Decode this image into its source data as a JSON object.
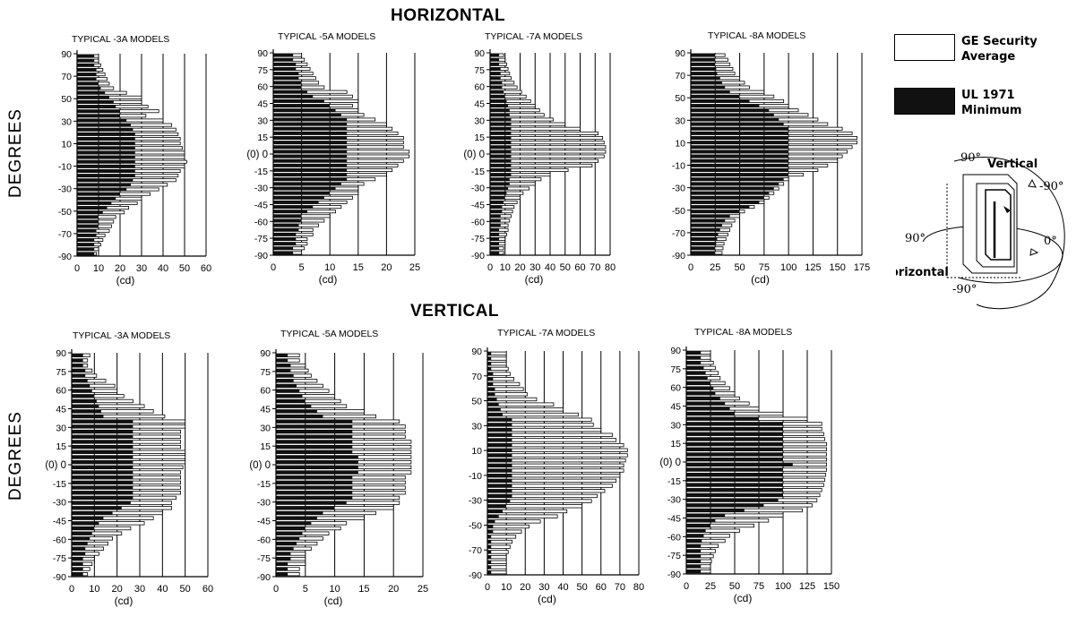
{
  "headings": {
    "horizontal": "HORIZONTAL",
    "vertical": "VERTICAL"
  },
  "axis": {
    "degrees_label": "DEGREES",
    "unit_label": "(cd)",
    "zero_label": "(0)"
  },
  "legend": {
    "average_line1": "GE Security",
    "average_line2": "Average",
    "minimum_line1": "UL 1971",
    "minimum_line2": "Minimum"
  },
  "diagram": {
    "vertical_label": "Vertical",
    "horizontal_label": "Horizontal",
    "deg_90_vertical": "90°",
    "deg_neg90_vertical": "-90°",
    "deg_90_horizontal": "90°",
    "deg_0": "0°",
    "deg_neg90_horizontal": "-90°"
  },
  "colors": {
    "average": "#ffffff",
    "minimum": "#111111",
    "outline": "#000000"
  },
  "chart_data": [
    {
      "type": "bar",
      "orientation": "horizontal",
      "group": "HORIZONTAL",
      "title": "TYPICAL -3A MODELS",
      "xlabel": "(cd)",
      "ylabel": "DEGREES",
      "xlim": [
        0,
        60
      ],
      "xticks": [
        0,
        10,
        20,
        30,
        40,
        50,
        60
      ],
      "ylim": [
        -90,
        90
      ],
      "yticks": [
        90,
        70,
        50,
        30,
        10,
        -10,
        -30,
        -50,
        -70,
        -90
      ],
      "series": [
        {
          "name": "GE Security Average",
          "values": [
            10,
            10,
            11,
            12,
            13,
            14,
            15,
            17,
            23,
            30,
            30,
            33,
            38,
            32,
            40,
            44,
            46,
            47,
            48,
            48,
            49,
            50,
            50,
            51,
            50,
            48,
            47,
            46,
            42,
            38,
            34,
            30,
            28,
            24,
            22,
            18,
            17,
            16,
            15,
            13,
            12,
            11,
            10,
            9
          ]
        },
        {
          "name": "UL 1971 Minimum",
          "values": [
            8,
            8,
            8,
            9,
            9,
            9,
            10,
            11,
            13,
            15,
            17,
            18,
            20,
            20,
            23,
            25,
            26,
            27,
            27,
            27,
            27,
            27,
            27,
            27,
            27,
            27,
            27,
            26,
            25,
            23,
            20,
            18,
            16,
            14,
            12,
            10,
            10,
            10,
            9,
            9,
            8,
            8,
            8,
            8
          ]
        }
      ]
    },
    {
      "type": "bar",
      "orientation": "horizontal",
      "group": "HORIZONTAL",
      "title": "TYPICAL -5A MODELS",
      "xlabel": "(cd)",
      "ylabel": "DEGREES",
      "xlim": [
        0,
        25
      ],
      "xticks": [
        0,
        5,
        10,
        15,
        20,
        25
      ],
      "ylim": [
        -90,
        90
      ],
      "yticks": [
        90,
        75,
        60,
        45,
        30,
        15,
        0,
        -15,
        -30,
        -45,
        -60,
        -75,
        -90
      ],
      "series": [
        {
          "name": "GE Security Average",
          "values": [
            5,
            5.5,
            6,
            6.5,
            7,
            7.5,
            8,
            9,
            13,
            14,
            15,
            14,
            15,
            16,
            18,
            20,
            21,
            22,
            23,
            23,
            23,
            24,
            24,
            23,
            22,
            21,
            20,
            18,
            16,
            15,
            15,
            14,
            13,
            12,
            11,
            10,
            9,
            8,
            7,
            7,
            6,
            6,
            5.5,
            5
          ]
        },
        {
          "name": "UL 1971 Minimum",
          "values": [
            3.5,
            3.5,
            4,
            4,
            4.5,
            4.5,
            5,
            5,
            6,
            7,
            9,
            10,
            11,
            12,
            13,
            13,
            13,
            13,
            13,
            13,
            13,
            13,
            13,
            13,
            13,
            13,
            13,
            13,
            12,
            11,
            10,
            9,
            8,
            7,
            6,
            5,
            5,
            4.5,
            4.5,
            4,
            4,
            4,
            3.5,
            3.5
          ]
        }
      ]
    },
    {
      "type": "bar",
      "orientation": "horizontal",
      "group": "HORIZONTAL",
      "title": "TYPICAL -7A MODELS",
      "xlabel": "(cd)",
      "ylabel": "DEGREES",
      "xlim": [
        0,
        80
      ],
      "xticks": [
        0,
        10,
        20,
        30,
        40,
        50,
        60,
        70,
        80
      ],
      "ylim": [
        -90,
        90
      ],
      "yticks": [
        90,
        75,
        60,
        45,
        30,
        15,
        0,
        -15,
        -30,
        -45,
        -60,
        -75,
        -90
      ],
      "series": [
        {
          "name": "GE Security Average",
          "values": [
            9,
            10,
            11,
            12,
            13,
            14,
            16,
            18,
            21,
            24,
            27,
            30,
            33,
            36,
            42,
            50,
            60,
            72,
            75,
            76,
            77,
            77,
            76,
            72,
            68,
            52,
            40,
            34,
            30,
            26,
            22,
            20,
            18,
            16,
            15,
            14,
            13,
            12,
            12,
            11,
            10,
            10,
            9,
            9
          ]
        },
        {
          "name": "UL 1971 Minimum",
          "values": [
            6,
            6,
            6,
            7,
            7,
            7,
            8,
            8,
            9,
            10,
            11,
            12,
            13,
            13,
            14,
            14,
            14,
            14,
            14,
            14,
            14,
            14,
            14,
            14,
            14,
            14,
            14,
            13,
            13,
            12,
            11,
            10,
            9,
            8,
            8,
            7,
            7,
            7,
            6,
            6,
            6,
            6,
            6,
            6
          ]
        }
      ]
    },
    {
      "type": "bar",
      "orientation": "horizontal",
      "group": "HORIZONTAL",
      "title": "TYPICAL -8A MODELS",
      "xlabel": "(cd)",
      "ylabel": "DEGREES",
      "xlim": [
        0,
        175
      ],
      "xticks": [
        0,
        25,
        50,
        75,
        100,
        125,
        150,
        175
      ],
      "ylim": [
        -90,
        90
      ],
      "yticks": [
        90,
        70,
        50,
        30,
        10,
        -10,
        -30,
        -50,
        -70,
        -90
      ],
      "series": [
        {
          "name": "GE Security Average",
          "values": [
            35,
            38,
            40,
            43,
            45,
            50,
            55,
            60,
            75,
            85,
            95,
            100,
            110,
            120,
            130,
            140,
            155,
            165,
            170,
            170,
            165,
            160,
            155,
            150,
            140,
            130,
            115,
            100,
            95,
            90,
            85,
            80,
            75,
            65,
            55,
            50,
            45,
            42,
            40,
            38,
            36,
            34,
            33,
            32
          ]
        },
        {
          "name": "UL 1971 Minimum",
          "values": [
            25,
            25,
            25,
            26,
            27,
            30,
            32,
            35,
            40,
            50,
            60,
            70,
            80,
            85,
            90,
            95,
            100,
            100,
            100,
            100,
            100,
            100,
            100,
            100,
            100,
            100,
            100,
            95,
            90,
            85,
            80,
            75,
            70,
            60,
            50,
            40,
            35,
            32,
            30,
            28,
            27,
            26,
            25,
            25
          ]
        }
      ]
    },
    {
      "type": "bar",
      "orientation": "horizontal",
      "group": "VERTICAL",
      "title": "TYPICAL -3A MODELS",
      "xlabel": "(cd)",
      "ylabel": "DEGREES",
      "xlim": [
        0,
        60
      ],
      "xticks": [
        0,
        10,
        20,
        30,
        40,
        50,
        60
      ],
      "ylim": [
        -90,
        90
      ],
      "yticks": [
        90,
        75,
        60,
        45,
        30,
        15,
        0,
        -15,
        -30,
        -45,
        -60,
        -75,
        -90
      ],
      "series": [
        {
          "name": "GE Security Average",
          "values": [
            8,
            7,
            7,
            9,
            11,
            15,
            19,
            20,
            23,
            27,
            32,
            36,
            41,
            50,
            50,
            48,
            48,
            48,
            48,
            50,
            50,
            50,
            49,
            48,
            48,
            48,
            48,
            48,
            46,
            44,
            44,
            40,
            36,
            32,
            26,
            22,
            18,
            16,
            14,
            12,
            10,
            9,
            8,
            7
          ]
        },
        {
          "name": "UL 1971 Minimum",
          "values": [
            5,
            5,
            5,
            6,
            6,
            7,
            8,
            9,
            10,
            11,
            12,
            13,
            14,
            27,
            27,
            27,
            27,
            27,
            27,
            27,
            27,
            27,
            27,
            27,
            27,
            27,
            27,
            27,
            27,
            26,
            22,
            18,
            14,
            12,
            10,
            9,
            8,
            7,
            6,
            6,
            5,
            5,
            5,
            5
          ]
        }
      ]
    },
    {
      "type": "bar",
      "orientation": "horizontal",
      "group": "VERTICAL",
      "title": "TYPICAL -5A MODELS",
      "xlabel": "(cd)",
      "ylabel": "DEGREES",
      "xlim": [
        0,
        25
      ],
      "xticks": [
        0,
        5,
        10,
        15,
        20,
        25
      ],
      "ylim": [
        -90,
        90
      ],
      "yticks": [
        90,
        75,
        60,
        45,
        30,
        15,
        0,
        -15,
        -30,
        -45,
        -60,
        -75,
        -90
      ],
      "series": [
        {
          "name": "GE Security Average",
          "values": [
            4,
            4,
            5,
            5.5,
            6,
            7,
            8,
            9,
            10,
            11,
            12,
            15,
            17,
            21,
            22,
            22,
            22,
            23,
            23,
            23,
            23,
            23,
            23,
            23,
            22,
            22,
            22,
            22,
            21,
            21,
            20,
            17,
            15,
            12,
            11,
            9,
            8,
            7,
            6,
            5,
            5,
            5,
            4,
            4
          ]
        },
        {
          "name": "UL 1971 Minimum",
          "values": [
            2,
            2,
            2.5,
            2.5,
            3,
            3,
            3.5,
            4,
            4.5,
            5,
            6,
            7,
            8,
            13,
            13,
            13,
            13,
            13,
            13,
            13,
            14,
            14,
            14,
            14,
            13,
            13,
            13,
            13,
            13,
            12,
            10,
            8,
            7,
            6,
            5,
            4.5,
            4,
            3.5,
            3,
            2.5,
            2.5,
            2,
            2,
            2
          ]
        }
      ]
    },
    {
      "type": "bar",
      "orientation": "horizontal",
      "group": "VERTICAL",
      "title": "TYPICAL -7A MODELS",
      "xlabel": "(cd)",
      "ylabel": "DEGREES",
      "xlim": [
        0,
        80
      ],
      "xticks": [
        0,
        10,
        20,
        30,
        40,
        50,
        60,
        70,
        80
      ],
      "ylim": [
        -90,
        90
      ],
      "yticks": [
        90,
        70,
        50,
        30,
        10,
        -10,
        -30,
        -50,
        -70,
        -90
      ],
      "series": [
        {
          "name": "GE Security Average",
          "values": [
            10,
            10,
            10,
            11,
            12,
            14,
            17,
            19,
            21,
            26,
            35,
            40,
            48,
            55,
            56,
            60,
            66,
            68,
            72,
            74,
            74,
            73,
            72,
            72,
            70,
            68,
            66,
            62,
            58,
            55,
            50,
            42,
            37,
            28,
            22,
            18,
            15,
            13,
            12,
            11,
            10,
            10,
            10,
            10
          ]
        },
        {
          "name": "UL 1971 Minimum",
          "values": [
            2,
            2,
            2,
            2,
            3,
            3,
            3,
            4,
            4,
            5,
            6,
            7,
            8,
            13,
            13,
            13,
            13,
            13,
            13,
            13,
            13,
            13,
            13,
            13,
            13,
            13,
            13,
            13,
            13,
            12,
            10,
            8,
            6,
            4,
            3,
            3,
            2,
            2,
            2,
            2,
            2,
            2,
            2,
            2
          ]
        }
      ]
    },
    {
      "type": "bar",
      "orientation": "horizontal",
      "group": "VERTICAL",
      "title": "TYPICAL -8A MODELS",
      "xlabel": "(cd)",
      "ylabel": "DEGREES",
      "xlim": [
        0,
        150
      ],
      "xticks": [
        0,
        25,
        50,
        75,
        100,
        125,
        150
      ],
      "ylim": [
        -90,
        90
      ],
      "yticks": [
        90,
        75,
        60,
        45,
        30,
        15,
        0,
        -15,
        -30,
        -45,
        -60,
        -75,
        -90
      ],
      "series": [
        {
          "name": "GE Security Average",
          "values": [
            25,
            25,
            28,
            30,
            33,
            35,
            40,
            45,
            50,
            55,
            65,
            75,
            100,
            125,
            140,
            140,
            142,
            143,
            145,
            145,
            145,
            145,
            145,
            145,
            144,
            143,
            142,
            140,
            138,
            135,
            130,
            120,
            100,
            85,
            70,
            55,
            45,
            40,
            33,
            30,
            28,
            26,
            25,
            25
          ]
        },
        {
          "name": "UL 1971 Minimum",
          "values": [
            15,
            15,
            15,
            18,
            20,
            22,
            25,
            28,
            30,
            35,
            40,
            45,
            50,
            75,
            100,
            100,
            100,
            100,
            100,
            100,
            100,
            100,
            110,
            100,
            100,
            100,
            100,
            100,
            100,
            95,
            80,
            60,
            40,
            30,
            25,
            20,
            18,
            16,
            15,
            15,
            15,
            15,
            15,
            15
          ]
        }
      ]
    }
  ]
}
